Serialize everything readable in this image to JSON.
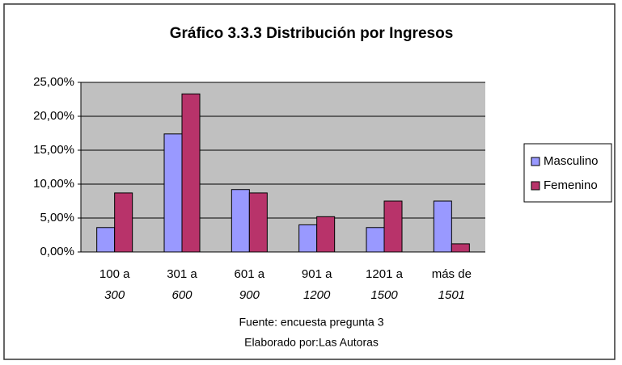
{
  "chart_data": {
    "type": "bar",
    "title": "Gráfico 3.3.3 Distribución por Ingresos",
    "categories": [
      [
        "100 a",
        "300"
      ],
      [
        "301 a",
        "600"
      ],
      [
        "601 a",
        "900"
      ],
      [
        "901 a",
        "1200"
      ],
      [
        "1201 a",
        "1500"
      ],
      [
        "más de",
        "1501"
      ]
    ],
    "series": [
      {
        "name": "Masculino",
        "color": "#9999ff",
        "values": [
          3.6,
          17.4,
          9.2,
          4.0,
          3.6,
          7.5
        ]
      },
      {
        "name": "Femenino",
        "color": "#b8336a",
        "values": [
          8.7,
          23.3,
          8.7,
          5.2,
          7.5,
          1.2
        ]
      }
    ],
    "ylim": [
      0,
      25
    ],
    "yticks": [
      {
        "value": 0,
        "label": "0,00%"
      },
      {
        "value": 5,
        "label": "5,00%"
      },
      {
        "value": 10,
        "label": "10,00%"
      },
      {
        "value": 15,
        "label": "15,00%"
      },
      {
        "value": 20,
        "label": "20,00%"
      },
      {
        "value": 25,
        "label": "25,00%"
      }
    ],
    "grid": true,
    "legend": "right",
    "notes": [
      "Fuente: encuesta pregunta 3",
      "Elaborado por:Las Autoras"
    ]
  }
}
